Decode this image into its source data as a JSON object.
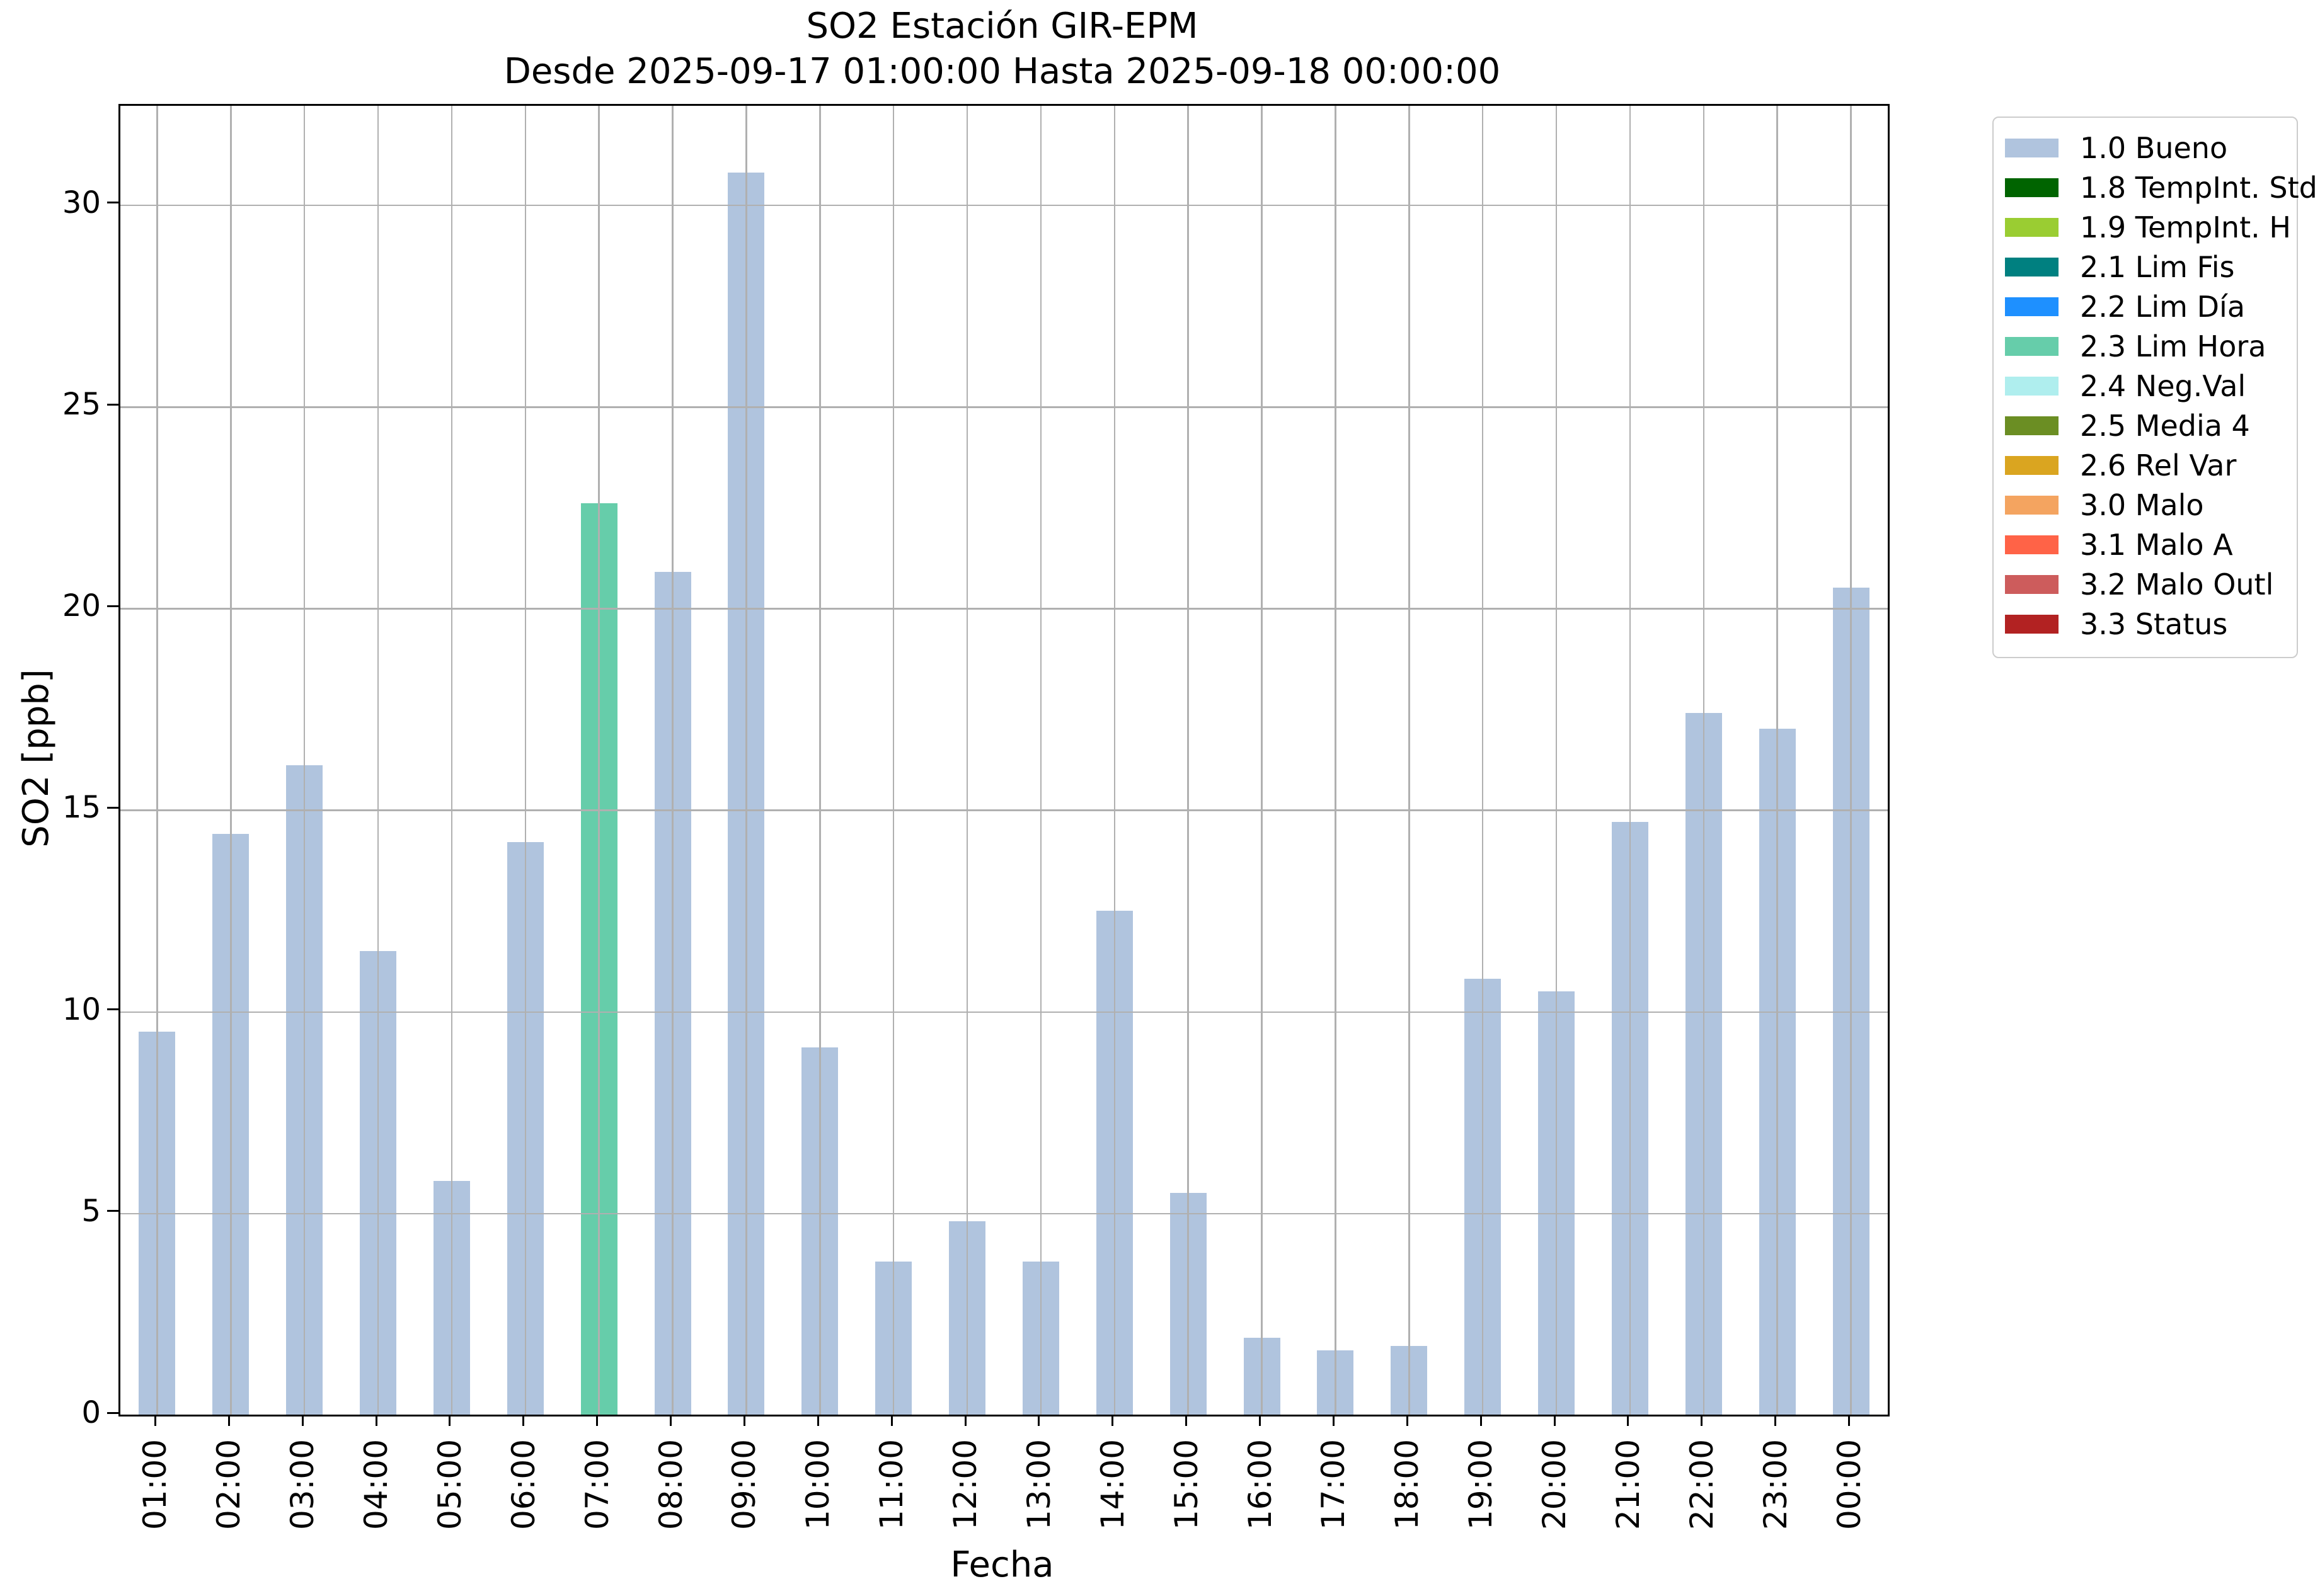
{
  "figure": {
    "title_line1": "SO2 Estación GIR-EPM",
    "title_line2": "Desde 2025-09-17 01:00:00 Hasta 2025-09-18 00:00:00"
  },
  "chart_data": {
    "type": "bar",
    "title": "SO2 Estación GIR-EPM",
    "subtitle": "Desde 2025-09-17 01:00:00 Hasta 2025-09-18 00:00:00",
    "xlabel": "Fecha",
    "ylabel": "SO2 [ppb]",
    "categories": [
      "01:00",
      "02:00",
      "03:00",
      "04:00",
      "05:00",
      "06:00",
      "07:00",
      "08:00",
      "09:00",
      "10:00",
      "11:00",
      "12:00",
      "13:00",
      "14:00",
      "15:00",
      "16:00",
      "17:00",
      "18:00",
      "19:00",
      "20:00",
      "21:00",
      "22:00",
      "23:00",
      "00:00"
    ],
    "values": [
      9.5,
      14.4,
      16.1,
      11.5,
      5.8,
      14.2,
      22.6,
      20.9,
      30.8,
      9.1,
      3.8,
      4.8,
      3.8,
      12.5,
      5.5,
      1.9,
      1.6,
      1.7,
      10.8,
      10.5,
      14.7,
      17.4,
      17.0,
      20.5
    ],
    "bar_colors": [
      "#b0c4de",
      "#b0c4de",
      "#b0c4de",
      "#b0c4de",
      "#b0c4de",
      "#b0c4de",
      "#66cdaa",
      "#b0c4de",
      "#b0c4de",
      "#b0c4de",
      "#b0c4de",
      "#b0c4de",
      "#b0c4de",
      "#b0c4de",
      "#b0c4de",
      "#b0c4de",
      "#b0c4de",
      "#b0c4de",
      "#b0c4de",
      "#b0c4de",
      "#b0c4de",
      "#b0c4de",
      "#b0c4de",
      "#b0c4de"
    ],
    "default_bar_color": "#b0c4de",
    "highlight_bar": {
      "category": "07:00",
      "color": "#66cdaa",
      "flag": "2.3 Lim Hora"
    },
    "yticks": [
      0,
      5,
      10,
      15,
      20,
      25,
      30
    ],
    "ylim": [
      0,
      32.45
    ],
    "grid": "both, drawn above bars",
    "legend_position": "outside top-right",
    "legend": [
      {
        "label": "1.0 Bueno",
        "color": "#b0c4de"
      },
      {
        "label": "1.8 TempInt. Std",
        "color": "#006400"
      },
      {
        "label": "1.9 TempInt. H",
        "color": "#9acd32"
      },
      {
        "label": "2.1 Lim Fis",
        "color": "#008080"
      },
      {
        "label": "2.2 Lim Día",
        "color": "#1e90ff"
      },
      {
        "label": "2.3 Lim Hora",
        "color": "#66cdaa"
      },
      {
        "label": "2.4 Neg.Val",
        "color": "#afeeee"
      },
      {
        "label": "2.5 Media 4",
        "color": "#6b8e23"
      },
      {
        "label": "2.6 Rel Var",
        "color": "#daa520"
      },
      {
        "label": "3.0 Malo",
        "color": "#f4a460"
      },
      {
        "label": "3.1 Malo A",
        "color": "#ff6347"
      },
      {
        "label": "3.2 Malo Outl",
        "color": "#cd5c5c"
      },
      {
        "label": "3.3 Status",
        "color": "#b22222"
      }
    ]
  },
  "colors": {
    "background": "#ffffff",
    "grid": "#b0b0b0",
    "spine": "#000000",
    "legend_border": "#cccccc",
    "text": "#000000"
  }
}
